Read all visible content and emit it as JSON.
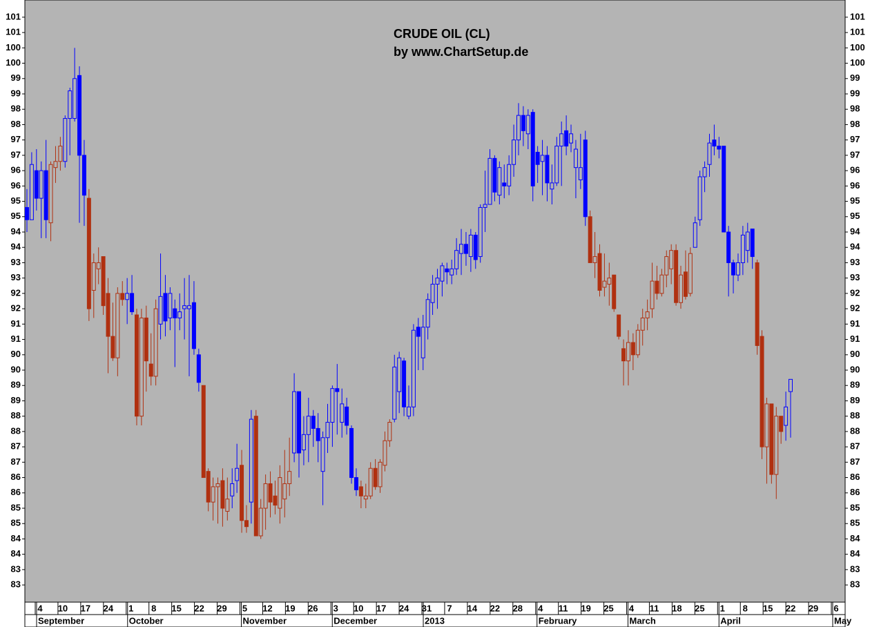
{
  "chart_data": {
    "type": "candlestick",
    "title": "CRUDE OIL (CL)",
    "subtitle": "by www.ChartSetup.de",
    "ylim": [
      81.94,
      101.56
    ],
    "yticks": [
      {
        "value": 82.5,
        "label": "83"
      },
      83,
      {
        "value": 83.5,
        "label": "84"
      },
      84,
      {
        "value": 84.5,
        "label": "85"
      },
      85,
      {
        "value": 85.5,
        "label": "86"
      },
      86,
      {
        "value": 86.5,
        "label": "87"
      },
      87,
      {
        "value": 87.5,
        "label": "88"
      },
      88,
      {
        "value": 88.5,
        "label": "89"
      },
      89,
      {
        "value": 89.5,
        "label": "90"
      },
      90,
      {
        "value": 90.5,
        "label": "91"
      },
      91,
      {
        "value": 91.5,
        "label": "92"
      },
      92,
      {
        "value": 92.5,
        "label": "93"
      },
      93,
      {
        "value": 93.5,
        "label": "94"
      },
      94,
      {
        "value": 94.5,
        "label": "95"
      },
      95,
      {
        "value": 95.5,
        "label": "96"
      },
      96,
      {
        "value": 96.5,
        "label": "97"
      },
      97,
      {
        "value": 97.5,
        "label": "98"
      },
      98,
      {
        "value": 98.5,
        "label": "99"
      },
      99,
      {
        "value": 99.5,
        "label": "100"
      },
      100,
      {
        "value": 100.5,
        "label": "101"
      },
      101
    ],
    "x_labels": [
      "4",
      "10",
      "17",
      "24",
      "1",
      "8",
      "15",
      "22",
      "29",
      "5",
      "12",
      "19",
      "26",
      "3",
      "10",
      "17",
      "24",
      "31",
      "7",
      "14",
      "22",
      "28",
      "4",
      "11",
      "19",
      "25",
      "4",
      "11",
      "18",
      "25",
      "1",
      "8",
      "15",
      "22",
      "29",
      "6"
    ],
    "months": [
      "September",
      "October",
      "November",
      "December",
      "2013",
      "February",
      "March",
      "April",
      "May"
    ],
    "ohlc": [
      [
        94.8,
        95.4,
        94.0,
        94.4
      ],
      [
        94.4,
        96.6,
        94.5,
        96.2
      ],
      [
        96.0,
        96.7,
        94.7,
        95.1
      ],
      [
        95.1,
        96.3,
        93.8,
        96.0
      ],
      [
        96.0,
        97.0,
        93.8,
        94.4
      ],
      [
        94.3,
        96.3,
        93.7,
        96.2
      ],
      [
        96.1,
        96.8,
        95.6,
        96.3
      ],
      [
        96.3,
        97.1,
        96.0,
        96.8
      ],
      [
        96.3,
        97.8,
        96.1,
        97.7
      ],
      [
        97.7,
        98.7,
        96.5,
        98.6
      ],
      [
        97.7,
        100.0,
        97.6,
        99.0
      ],
      [
        99.1,
        99.4,
        94.3,
        96.5
      ],
      [
        96.5,
        97.0,
        94.2,
        95.2
      ],
      [
        95.1,
        95.4,
        91.1,
        91.5
      ],
      [
        92.1,
        93.3,
        91.2,
        93.0
      ],
      [
        92.8,
        93.5,
        92.3,
        93.0
      ],
      [
        93.2,
        93.2,
        91.3,
        91.6
      ],
      [
        92.0,
        92.5,
        89.4,
        90.6
      ],
      [
        90.6,
        91.7,
        89.8,
        89.9
      ],
      [
        89.9,
        92.2,
        89.3,
        92.0
      ],
      [
        92.0,
        92.4,
        91.6,
        91.8
      ],
      [
        91.8,
        92.5,
        91.0,
        92.0
      ],
      [
        92.0,
        92.6,
        91.3,
        91.4
      ],
      [
        91.3,
        91.5,
        87.7,
        88.0
      ],
      [
        88.0,
        91.5,
        87.7,
        91.2
      ],
      [
        91.2,
        91.6,
        88.8,
        89.8
      ],
      [
        89.7,
        90.7,
        89.0,
        89.3
      ],
      [
        89.3,
        91.8,
        89.0,
        91.5
      ],
      [
        91.0,
        93.3,
        90.5,
        91.9
      ],
      [
        92.0,
        92.6,
        90.6,
        91.1
      ],
      [
        91.2,
        92.2,
        90.8,
        92.0
      ],
      [
        91.5,
        91.8,
        89.6,
        91.2
      ],
      [
        91.2,
        92.0,
        90.8,
        91.4
      ],
      [
        91.5,
        92.5,
        90.5,
        91.6
      ],
      [
        91.5,
        92.6,
        89.3,
        91.6
      ],
      [
        91.7,
        92.4,
        90.0,
        90.2
      ],
      [
        90.0,
        90.2,
        88.8,
        89.1
      ],
      [
        89.0,
        89.0,
        86.0,
        86.0
      ],
      [
        86.2,
        86.3,
        84.9,
        85.2
      ],
      [
        85.2,
        86.0,
        84.6,
        85.7
      ],
      [
        85.7,
        86.0,
        84.5,
        85.8
      ],
      [
        85.9,
        86.3,
        84.4,
        85.0
      ],
      [
        84.9,
        86.0,
        84.6,
        85.3
      ],
      [
        85.4,
        86.3,
        85.0,
        85.8
      ],
      [
        85.9,
        87.1,
        85.5,
        86.3
      ],
      [
        86.4,
        86.9,
        84.2,
        84.6
      ],
      [
        84.6,
        85.1,
        84.2,
        84.4
      ],
      [
        85.2,
        88.2,
        84.5,
        87.9
      ],
      [
        88.0,
        88.2,
        84.1,
        84.1
      ],
      [
        84.1,
        85.3,
        84.0,
        85.0
      ],
      [
        85.0,
        86.1,
        84.3,
        85.8
      ],
      [
        85.8,
        86.2,
        84.7,
        85.2
      ],
      [
        85.4,
        85.9,
        84.8,
        85.1
      ],
      [
        85.0,
        86.4,
        84.5,
        86.0
      ],
      [
        85.3,
        86.9,
        84.7,
        85.8
      ],
      [
        85.8,
        87.3,
        85.4,
        86.2
      ],
      [
        86.8,
        89.4,
        86.5,
        88.8
      ],
      [
        88.8,
        88.8,
        86.0,
        86.8
      ],
      [
        86.9,
        88.0,
        86.4,
        87.4
      ],
      [
        87.4,
        88.6,
        86.5,
        88.0
      ],
      [
        88.0,
        88.2,
        87.0,
        87.6
      ],
      [
        87.6,
        88.1,
        86.5,
        87.2
      ],
      [
        86.2,
        87.5,
        85.1,
        87.3
      ],
      [
        87.3,
        88.4,
        86.8,
        87.8
      ],
      [
        87.8,
        89.0,
        87.0,
        88.9
      ],
      [
        88.9,
        89.7,
        87.4,
        88.8
      ],
      [
        87.8,
        88.9,
        87.3,
        88.4
      ],
      [
        88.3,
        88.6,
        87.4,
        87.7
      ],
      [
        87.6,
        87.7,
        85.8,
        86.0
      ],
      [
        86.0,
        86.3,
        85.4,
        85.6
      ],
      [
        85.7,
        85.9,
        85.0,
        85.4
      ],
      [
        85.3,
        85.8,
        85.0,
        85.4
      ],
      [
        85.4,
        86.5,
        85.3,
        86.3
      ],
      [
        86.3,
        86.6,
        85.6,
        85.7
      ],
      [
        85.7,
        86.6,
        85.5,
        86.5
      ],
      [
        86.4,
        87.5,
        86.2,
        87.2
      ],
      [
        87.2,
        87.9,
        87.0,
        87.8
      ],
      [
        87.9,
        90.0,
        87.8,
        89.6
      ],
      [
        88.8,
        90.1,
        88.1,
        89.9
      ],
      [
        89.8,
        89.9,
        88.0,
        88.3
      ],
      [
        88.0,
        89.0,
        87.9,
        88.3
      ],
      [
        88.3,
        91.0,
        88.0,
        90.8
      ],
      [
        90.9,
        91.2,
        89.5,
        90.6
      ],
      [
        89.9,
        91.3,
        89.5,
        90.9
      ],
      [
        90.9,
        92.0,
        90.5,
        91.8
      ],
      [
        91.7,
        92.6,
        91.3,
        92.3
      ],
      [
        92.3,
        92.8,
        91.5,
        92.5
      ],
      [
        92.4,
        93.0,
        91.9,
        92.9
      ],
      [
        92.8,
        93.0,
        92.3,
        92.7
      ],
      [
        92.6,
        93.1,
        92.3,
        92.8
      ],
      [
        92.8,
        93.8,
        92.6,
        93.4
      ],
      [
        93.3,
        94.1,
        92.6,
        93.6
      ],
      [
        93.6,
        94.0,
        92.9,
        93.3
      ],
      [
        93.2,
        94.1,
        92.7,
        93.9
      ],
      [
        93.9,
        94.0,
        92.8,
        93.1
      ],
      [
        93.2,
        94.9,
        93.0,
        94.8
      ],
      [
        94.8,
        96.0,
        94.0,
        94.9
      ],
      [
        94.9,
        96.7,
        94.9,
        96.4
      ],
      [
        96.4,
        96.5,
        95.0,
        95.3
      ],
      [
        95.2,
        96.3,
        94.9,
        96.1
      ],
      [
        95.6,
        96.2,
        95.1,
        95.5
      ],
      [
        95.5,
        96.5,
        95.2,
        96.2
      ],
      [
        96.2,
        97.5,
        95.8,
        97.0
      ],
      [
        97.0,
        98.2,
        96.5,
        97.8
      ],
      [
        97.8,
        98.1,
        96.8,
        97.3
      ],
      [
        97.2,
        98.0,
        96.7,
        97.8
      ],
      [
        97.9,
        98.0,
        95.0,
        95.5
      ],
      [
        96.6,
        96.8,
        95.6,
        96.2
      ],
      [
        96.3,
        97.0,
        95.2,
        96.5
      ],
      [
        96.5,
        96.8,
        95.0,
        95.6
      ],
      [
        95.4,
        96.2,
        94.9,
        95.6
      ],
      [
        95.6,
        97.1,
        95.5,
        96.8
      ],
      [
        96.8,
        97.6,
        95.5,
        97.2
      ],
      [
        97.3,
        97.8,
        96.5,
        96.8
      ],
      [
        96.9,
        97.5,
        96.6,
        97.2
      ],
      [
        96.1,
        97.0,
        95.1,
        96.7
      ],
      [
        95.7,
        97.2,
        95.4,
        96.1
      ],
      [
        97.0,
        97.3,
        94.2,
        94.5
      ],
      [
        94.5,
        94.7,
        93.0,
        93.0
      ],
      [
        93.0,
        94.0,
        92.5,
        93.2
      ],
      [
        93.3,
        93.6,
        91.9,
        92.1
      ],
      [
        92.2,
        93.3,
        91.9,
        92.4
      ],
      [
        92.3,
        93.0,
        91.6,
        92.5
      ],
      [
        92.6,
        92.6,
        91.4,
        91.5
      ],
      [
        91.3,
        91.3,
        90.5,
        90.6
      ],
      [
        90.2,
        90.5,
        89.0,
        89.8
      ],
      [
        89.8,
        90.8,
        89.0,
        90.4
      ],
      [
        90.4,
        90.7,
        89.5,
        90.0
      ],
      [
        90.0,
        91.0,
        89.9,
        90.8
      ],
      [
        90.8,
        91.5,
        90.3,
        91.2
      ],
      [
        91.2,
        91.8,
        90.8,
        91.4
      ],
      [
        91.5,
        93.0,
        91.2,
        92.4
      ],
      [
        92.4,
        92.9,
        91.8,
        92.0
      ],
      [
        92.0,
        92.8,
        91.9,
        92.6
      ],
      [
        92.6,
        93.4,
        92.2,
        93.2
      ],
      [
        92.8,
        93.6,
        92.3,
        93.4
      ],
      [
        93.4,
        93.6,
        91.6,
        91.7
      ],
      [
        91.7,
        92.9,
        91.5,
        92.6
      ],
      [
        92.7,
        93.4,
        91.8,
        91.9
      ],
      [
        92.0,
        93.5,
        91.9,
        93.3
      ],
      [
        93.5,
        94.5,
        93.5,
        94.3
      ],
      [
        94.4,
        96.0,
        94.2,
        95.8
      ],
      [
        95.8,
        96.3,
        95.3,
        96.1
      ],
      [
        96.2,
        97.2,
        95.8,
        96.9
      ],
      [
        97.0,
        97.5,
        96.5,
        96.8
      ],
      [
        96.8,
        97.1,
        96.4,
        96.7
      ],
      [
        96.8,
        96.8,
        94.0,
        94.0
      ],
      [
        94.0,
        94.2,
        91.9,
        93.0
      ],
      [
        93.0,
        93.1,
        92.0,
        92.6
      ],
      [
        92.6,
        93.3,
        92.4,
        93.0
      ],
      [
        93.0,
        94.2,
        92.6,
        93.9
      ],
      [
        93.4,
        94.3,
        93.0,
        94.0
      ],
      [
        94.1,
        94.1,
        92.8,
        93.2
      ],
      [
        93.0,
        93.1,
        90.0,
        90.3
      ],
      [
        90.6,
        90.8,
        86.6,
        87.0
      ],
      [
        87.0,
        88.6,
        85.8,
        88.4
      ],
      [
        88.4,
        88.4,
        85.8,
        86.1
      ],
      [
        86.1,
        88.3,
        85.3,
        88.0
      ],
      [
        88.0,
        88.0,
        87.1,
        87.5
      ],
      [
        87.7,
        88.8,
        87.2,
        88.3
      ],
      [
        88.8,
        89.2,
        87.3,
        89.2
      ]
    ],
    "colors": [
      "#0000ff",
      "#0000ff",
      "#0000ff",
      "#0000ff",
      "#0000ff",
      "#b03010",
      "#b03010",
      "#b03010",
      "#0000ff",
      "#0000ff",
      "#0000ff",
      "#0000ff",
      "#0000ff",
      "#b03010",
      "#b03010",
      "#b03010",
      "#b03010",
      "#b03010",
      "#b03010",
      "#b03010",
      "#b03010",
      "#0000ff",
      "#0000ff",
      "#b03010",
      "#b03010",
      "#b03010",
      "#b03010",
      "#b03010",
      "#0000ff",
      "#0000ff",
      "#0000ff",
      "#0000ff",
      "#0000ff",
      "#0000ff",
      "#0000ff",
      "#0000ff",
      "#0000ff",
      "#b03010",
      "#b03010",
      "#b03010",
      "#b03010",
      "#b03010",
      "#b03010",
      "#0000ff",
      "#0000ff",
      "#b03010",
      "#b03010",
      "#0000ff",
      "#b03010",
      "#b03010",
      "#b03010",
      "#b03010",
      "#b03010",
      "#b03010",
      "#b03010",
      "#b03010",
      "#0000ff",
      "#0000ff",
      "#0000ff",
      "#0000ff",
      "#0000ff",
      "#0000ff",
      "#0000ff",
      "#0000ff",
      "#0000ff",
      "#0000ff",
      "#0000ff",
      "#0000ff",
      "#0000ff",
      "#0000ff",
      "#b03010",
      "#b03010",
      "#b03010",
      "#b03010",
      "#b03010",
      "#b03010",
      "#b03010",
      "#0000ff",
      "#0000ff",
      "#0000ff",
      "#0000ff",
      "#0000ff",
      "#0000ff",
      "#0000ff",
      "#0000ff",
      "#0000ff",
      "#0000ff",
      "#0000ff",
      "#0000ff",
      "#0000ff",
      "#0000ff",
      "#0000ff",
      "#0000ff",
      "#0000ff",
      "#0000ff",
      "#0000ff",
      "#0000ff",
      "#0000ff",
      "#0000ff",
      "#0000ff",
      "#0000ff",
      "#0000ff",
      "#0000ff",
      "#0000ff",
      "#0000ff",
      "#0000ff",
      "#0000ff",
      "#0000ff",
      "#0000ff",
      "#0000ff",
      "#0000ff",
      "#0000ff",
      "#0000ff",
      "#0000ff",
      "#0000ff",
      "#0000ff",
      "#0000ff",
      "#0000ff",
      "#b03010",
      "#b03010",
      "#b03010",
      "#b03010",
      "#b03010",
      "#b03010",
      "#b03010",
      "#b03010",
      "#b03010",
      "#b03010",
      "#b03010",
      "#b03010",
      "#b03010",
      "#b03010",
      "#b03010",
      "#b03010",
      "#b03010",
      "#b03010",
      "#b03010",
      "#b03010",
      "#b03010",
      "#b03010",
      "#0000ff",
      "#0000ff",
      "#0000ff",
      "#0000ff",
      "#0000ff",
      "#0000ff",
      "#0000ff",
      "#0000ff",
      "#0000ff",
      "#0000ff",
      "#0000ff",
      "#0000ff",
      "#0000ff",
      "#b03010",
      "#b03010",
      "#b03010",
      "#b03010",
      "#b03010",
      "#b03010",
      "#0000ff",
      "#0000ff"
    ]
  }
}
